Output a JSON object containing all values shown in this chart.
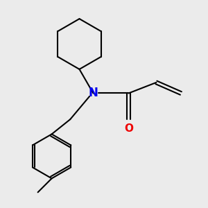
{
  "bg_color": "#ebebeb",
  "bond_color": "#000000",
  "N_color": "#0000ee",
  "O_color": "#ee0000",
  "line_width": 1.5,
  "font_size": 11,
  "N_font_size": 12
}
